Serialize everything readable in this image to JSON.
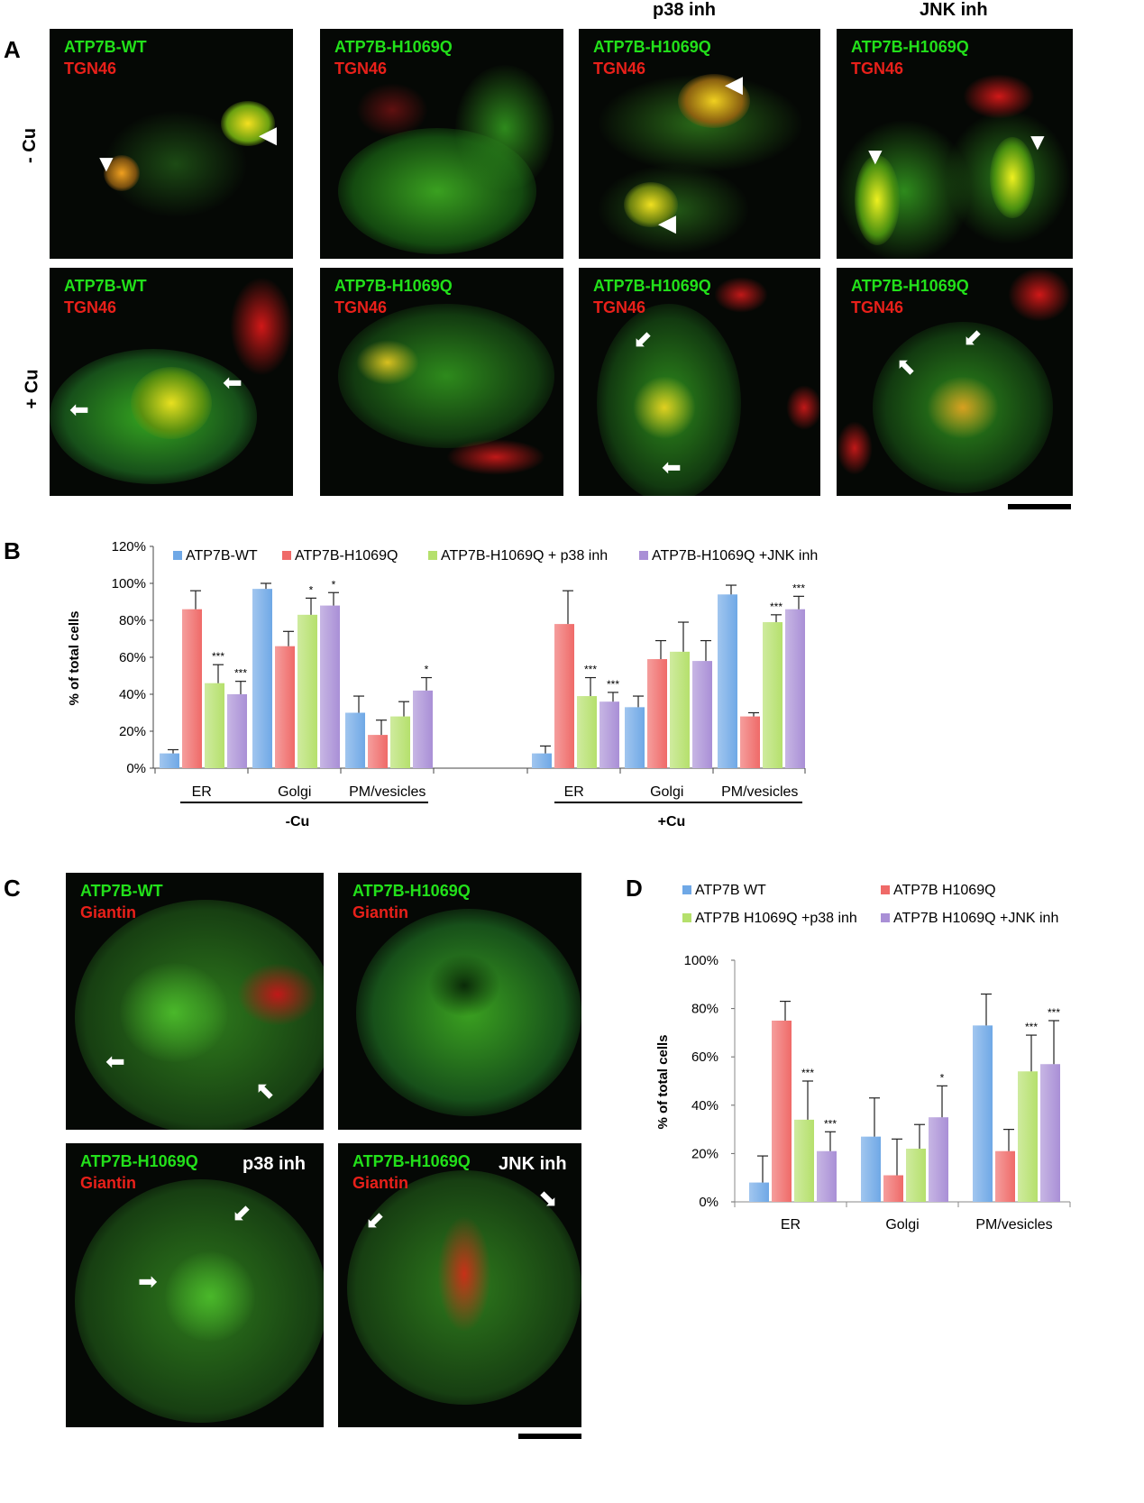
{
  "panel_a": {
    "letter": "A",
    "col_heads": {
      "c3": "p38 inh",
      "c4": "JNK inh"
    },
    "row_labels": {
      "r1": "- Cu",
      "r2": "+ Cu"
    },
    "images": [
      {
        "green": "ATP7B-WT",
        "red": "TGN46"
      },
      {
        "green": "ATP7B-H1069Q",
        "red": "TGN46"
      },
      {
        "green": "ATP7B-H1069Q",
        "red": "TGN46"
      },
      {
        "green": "ATP7B-H1069Q",
        "red": "TGN46"
      },
      {
        "green": "ATP7B-WT",
        "red": "TGN46"
      },
      {
        "green": "ATP7B-H1069Q",
        "red": "TGN46"
      },
      {
        "green": "ATP7B-H1069Q",
        "red": "TGN46"
      },
      {
        "green": "ATP7B-H1069Q",
        "red": "TGN46"
      }
    ]
  },
  "panel_b": {
    "letter": "B"
  },
  "panel_c": {
    "letter": "C",
    "images": [
      {
        "green": "ATP7B-WT",
        "red": "Giantin",
        "tag": ""
      },
      {
        "green": "ATP7B-H1069Q",
        "red": "Giantin",
        "tag": ""
      },
      {
        "green": "ATP7B-H1069Q",
        "red": "Giantin",
        "tag": "p38 inh"
      },
      {
        "green": "ATP7B-H1069Q",
        "red": "Giantin",
        "tag": "JNK inh"
      }
    ]
  },
  "panel_d": {
    "letter": "D"
  },
  "colors": {
    "blue": "#6fa8e6",
    "red": "#ef6a68",
    "green": "#b5e06c",
    "purple": "#a98fd6"
  },
  "chart_data": [
    {
      "type": "bar",
      "ylabel": "% of total cells",
      "yticks": [
        "0%",
        "20%",
        "40%",
        "60%",
        "80%",
        "100%",
        "120%"
      ],
      "ylim": [
        0,
        120
      ],
      "legend": [
        "ATP7B-WT",
        "ATP7B-H1069Q",
        "ATP7B-H1069Q + p38 inh",
        "ATP7B-H1069Q +JNK inh"
      ],
      "group_labels": [
        "-Cu",
        "+Cu"
      ],
      "categories": [
        "ER",
        "Golgi",
        "PM/vesicles",
        "ER",
        "Golgi",
        "PM/vesicles"
      ],
      "series": [
        {
          "name": "ATP7B-WT",
          "values": [
            8,
            97,
            30,
            8,
            33,
            94
          ],
          "err": [
            2,
            3,
            9,
            4,
            6,
            5
          ]
        },
        {
          "name": "ATP7B-H1069Q",
          "values": [
            86,
            66,
            18,
            78,
            59,
            28
          ],
          "err": [
            10,
            8,
            8,
            18,
            10,
            2
          ]
        },
        {
          "name": "ATP7B-H1069Q + p38 inh",
          "values": [
            46,
            83,
            28,
            39,
            63,
            79
          ],
          "err": [
            10,
            9,
            8,
            10,
            16,
            4
          ]
        },
        {
          "name": "ATP7B-H1069Q +JNK inh",
          "values": [
            40,
            88,
            42,
            36,
            58,
            86
          ],
          "err": [
            7,
            7,
            7,
            5,
            11,
            7
          ]
        }
      ],
      "stars": [
        {
          "series": 2,
          "cat": 0,
          "text": "***"
        },
        {
          "series": 3,
          "cat": 0,
          "text": "***"
        },
        {
          "series": 2,
          "cat": 1,
          "text": "*"
        },
        {
          "series": 3,
          "cat": 1,
          "text": "*"
        },
        {
          "series": 3,
          "cat": 2,
          "text": "*"
        },
        {
          "series": 2,
          "cat": 3,
          "text": "***"
        },
        {
          "series": 3,
          "cat": 3,
          "text": "***"
        },
        {
          "series": 2,
          "cat": 5,
          "text": "***"
        },
        {
          "series": 3,
          "cat": 5,
          "text": "***"
        }
      ]
    },
    {
      "type": "bar",
      "ylabel": "% of total cells",
      "yticks": [
        "0%",
        "20%",
        "40%",
        "60%",
        "80%",
        "100%"
      ],
      "ylim": [
        0,
        100
      ],
      "legend": [
        "ATP7B WT",
        "ATP7B H1069Q",
        "ATP7B H1069Q +p38 inh",
        "ATP7B H1069Q +JNK inh"
      ],
      "categories": [
        "ER",
        "Golgi",
        "PM/vesicles"
      ],
      "series": [
        {
          "name": "ATP7B WT",
          "values": [
            8,
            27,
            73
          ],
          "err": [
            11,
            16,
            13
          ]
        },
        {
          "name": "ATP7B H1069Q",
          "values": [
            75,
            11,
            21
          ],
          "err": [
            8,
            15,
            9
          ]
        },
        {
          "name": "ATP7B H1069Q +p38 inh",
          "values": [
            34,
            22,
            54
          ],
          "err": [
            16,
            10,
            15
          ]
        },
        {
          "name": "ATP7B H1069Q +JNK inh",
          "values": [
            21,
            35,
            57
          ],
          "err": [
            8,
            13,
            18
          ]
        }
      ],
      "stars": [
        {
          "series": 2,
          "cat": 0,
          "text": "***"
        },
        {
          "series": 3,
          "cat": 0,
          "text": "***"
        },
        {
          "series": 3,
          "cat": 1,
          "text": "*"
        },
        {
          "series": 2,
          "cat": 2,
          "text": "***"
        },
        {
          "series": 3,
          "cat": 2,
          "text": "***"
        }
      ]
    }
  ]
}
